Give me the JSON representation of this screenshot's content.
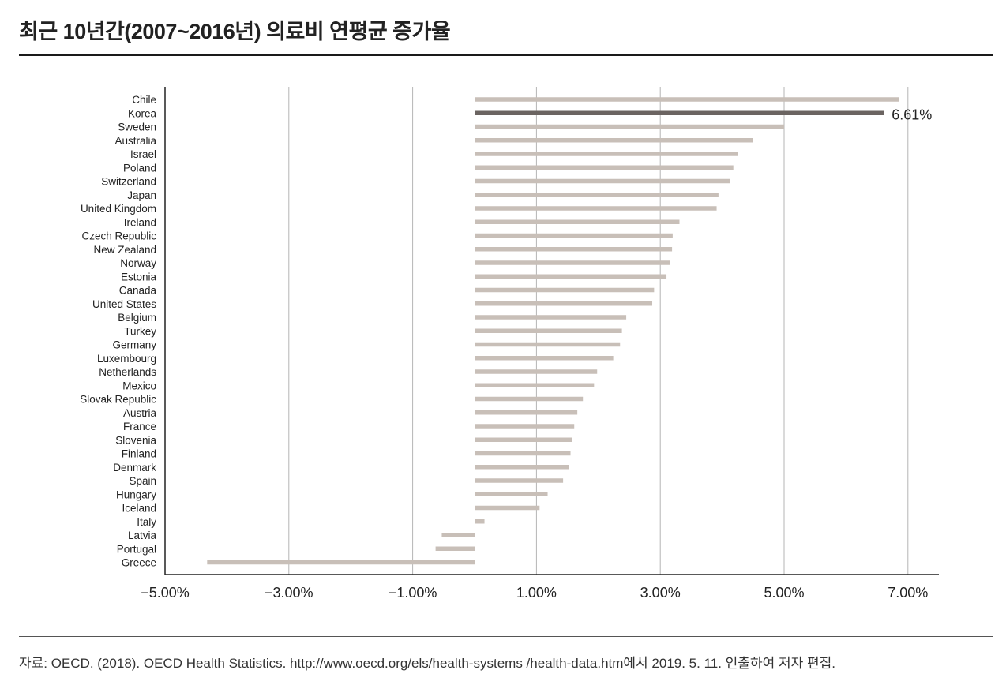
{
  "title": "최근 10년간(2007~2016년) 의료비 연평균 증가율",
  "source": "자료: OECD. (2018). OECD Health Statistics. http://www.oecd.org/els/health-systems /health-data.htm에서 2019. 5. 11. 인출하여 저자 편집.",
  "colors": {
    "bar": "#c8bfb8",
    "highlight": "#6b6461",
    "grid": "#b5b5b5",
    "axis": "#222222"
  },
  "chart_data": {
    "type": "bar",
    "orientation": "horizontal",
    "categories": [
      "Chile",
      "Korea",
      "Sweden",
      "Australia",
      "Israel",
      "Poland",
      "Switzerland",
      "Japan",
      "United Kingdom",
      "Ireland",
      "Czech Republic",
      "New Zealand",
      "Norway",
      "Estonia",
      "Canada",
      "United States",
      "Belgium",
      "Turkey",
      "Germany",
      "Luxembourg",
      "Netherlands",
      "Mexico",
      "Slovak Republic",
      "Austria",
      "France",
      "Slovenia",
      "Finland",
      "Denmark",
      "Spain",
      "Hungary",
      "Iceland",
      "Italy",
      "Latvia",
      "Portugal",
      "Greece"
    ],
    "values": [
      6.85,
      6.61,
      5.0,
      4.5,
      4.25,
      4.18,
      4.13,
      3.94,
      3.91,
      3.31,
      3.2,
      3.19,
      3.16,
      3.1,
      2.9,
      2.87,
      2.45,
      2.38,
      2.35,
      2.24,
      1.98,
      1.93,
      1.75,
      1.66,
      1.61,
      1.57,
      1.55,
      1.52,
      1.43,
      1.18,
      1.05,
      0.16,
      -0.53,
      -0.63,
      -4.32
    ],
    "highlight": "Korea",
    "data_labels": [
      {
        "category": "Korea",
        "text": "6.61%"
      }
    ],
    "xlim": [
      -5,
      7.5
    ],
    "xticks": [
      -5,
      -3,
      -1,
      1,
      3,
      5,
      7
    ],
    "xtick_labels": [
      "−5.00%",
      "−3.00%",
      "−1.00%",
      "1.00%",
      "3.00%",
      "5.00%",
      "7.00%"
    ],
    "grid": true,
    "xlabel": "",
    "ylabel": ""
  }
}
